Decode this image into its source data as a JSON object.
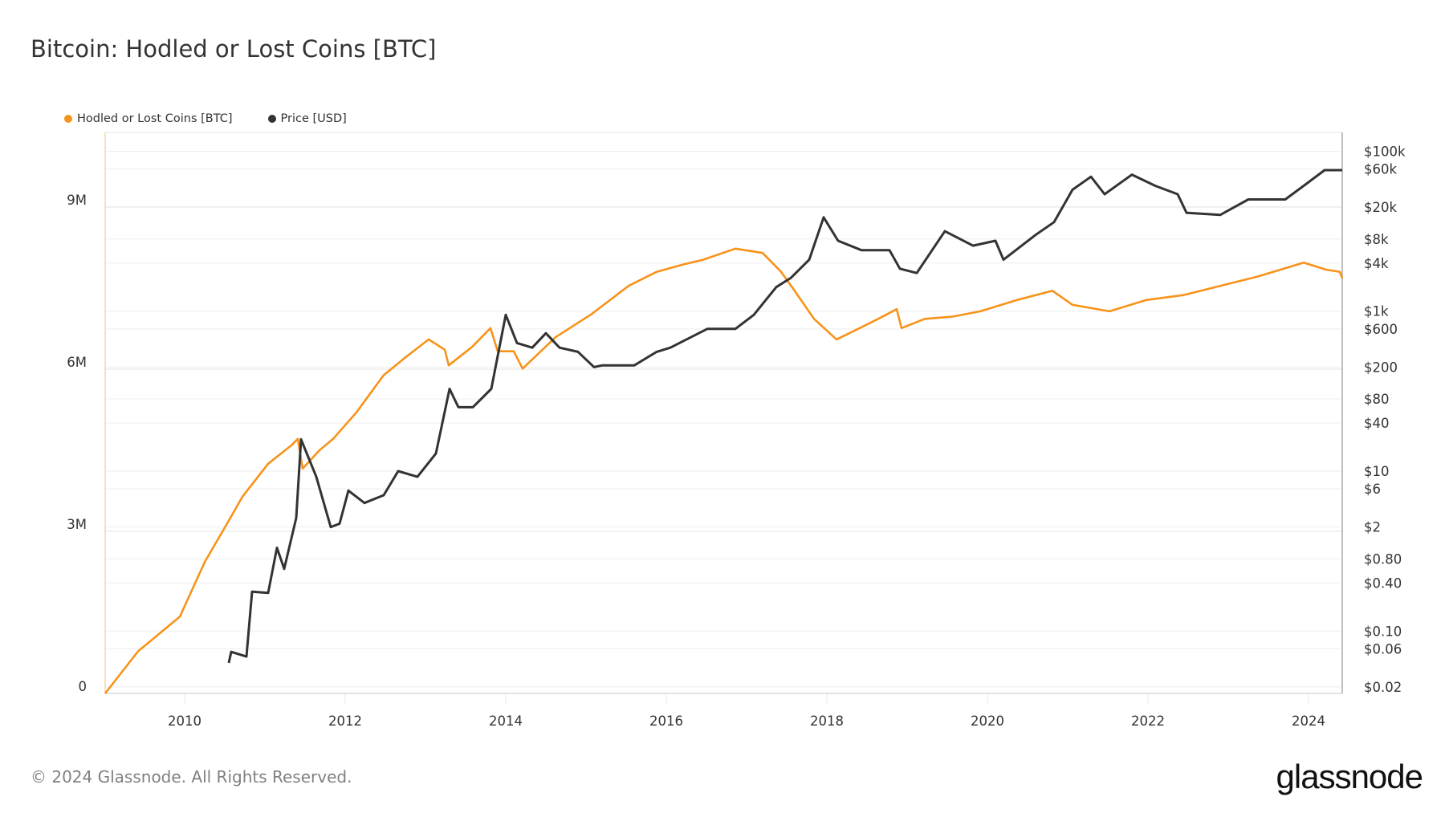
{
  "chart_data": {
    "type": "line",
    "title": "Bitcoin: Hodled or Lost Coins [BTC]",
    "xlim": [
      2009.01,
      2024.42
    ],
    "x_ticks": [
      "2010",
      "2012",
      "2014",
      "2016",
      "2018",
      "2020",
      "2022",
      "2024"
    ],
    "y_left": {
      "range": [
        0,
        10380000
      ],
      "ticks": [
        {
          "value": 0,
          "label": "0"
        },
        {
          "value": 3000000,
          "label": "3M"
        },
        {
          "value": 6000000,
          "label": "6M"
        },
        {
          "value": 9000000,
          "label": "9M"
        }
      ]
    },
    "y_right": {
      "scale": "log",
      "range": [
        0.0166,
        172000
      ],
      "ticks": [
        {
          "value": 100000,
          "label": "$100k"
        },
        {
          "value": 60000,
          "label": "$60k"
        },
        {
          "value": 20000,
          "label": "$20k"
        },
        {
          "value": 8000,
          "label": "$8k"
        },
        {
          "value": 4000,
          "label": "$4k"
        },
        {
          "value": 1000,
          "label": "$1k"
        },
        {
          "value": 600,
          "label": "$600"
        },
        {
          "value": 200,
          "label": "$200"
        },
        {
          "value": 80,
          "label": "$80"
        },
        {
          "value": 40,
          "label": "$40"
        },
        {
          "value": 10,
          "label": "$10"
        },
        {
          "value": 6,
          "label": "$6"
        },
        {
          "value": 2,
          "label": "$2"
        },
        {
          "value": 0.8,
          "label": "$0.80"
        },
        {
          "value": 0.4,
          "label": "$0.40"
        },
        {
          "value": 0.1,
          "label": "$0.10"
        },
        {
          "value": 0.06,
          "label": "$0.06"
        },
        {
          "value": 0.02,
          "label": "$0.02"
        }
      ]
    },
    "grid": true,
    "legend_position": "top-left",
    "series": [
      {
        "name": "Hodled or Lost Coins [BTC]",
        "axis": "left",
        "color": "#f7931a",
        "x": [
          2009.01,
          2009.42,
          2009.94,
          2010.25,
          2010.52,
          2010.72,
          2011.04,
          2011.33,
          2011.41,
          2011.47,
          2011.68,
          2011.85,
          2012.14,
          2012.48,
          2012.77,
          2013.04,
          2013.24,
          2013.29,
          2013.58,
          2013.81,
          2013.9,
          2014.1,
          2014.21,
          2014.62,
          2015.07,
          2015.53,
          2015.88,
          2016.22,
          2016.45,
          2016.86,
          2017.2,
          2017.43,
          2017.58,
          2017.84,
          2018.12,
          2018.41,
          2018.64,
          2018.87,
          2018.93,
          2019.22,
          2019.56,
          2019.91,
          2020.37,
          2020.81,
          2021.06,
          2021.52,
          2021.98,
          2022.44,
          2022.9,
          2023.36,
          2023.94,
          2024.22,
          2024.39,
          2024.42
        ],
        "y": [
          0,
          780000,
          1420000,
          2430000,
          3120000,
          3640000,
          4250000,
          4590000,
          4710000,
          4160000,
          4500000,
          4710000,
          5200000,
          5890000,
          6240000,
          6550000,
          6360000,
          6070000,
          6410000,
          6760000,
          6330000,
          6330000,
          6010000,
          6590000,
          7020000,
          7540000,
          7800000,
          7940000,
          8020000,
          8230000,
          8150000,
          7800000,
          7490000,
          6930000,
          6550000,
          6760000,
          6930000,
          7110000,
          6760000,
          6930000,
          6970000,
          7070000,
          7280000,
          7450000,
          7190000,
          7070000,
          7280000,
          7370000,
          7540000,
          7710000,
          7970000,
          7840000,
          7800000,
          7680000
        ]
      },
      {
        "name": "Price [USD]",
        "axis": "right",
        "color": "#333333",
        "x": [
          2010.55,
          2010.58,
          2010.77,
          2010.84,
          2011.04,
          2011.15,
          2011.24,
          2011.39,
          2011.45,
          2011.64,
          2011.82,
          2011.93,
          2012.04,
          2012.24,
          2012.48,
          2012.66,
          2012.9,
          2013.13,
          2013.3,
          2013.41,
          2013.59,
          2013.82,
          2014.0,
          2014.14,
          2014.33,
          2014.5,
          2014.67,
          2014.9,
          2015.1,
          2015.2,
          2015.6,
          2015.88,
          2016.05,
          2016.51,
          2016.86,
          2017.09,
          2017.37,
          2017.55,
          2017.78,
          2017.96,
          2018.14,
          2018.43,
          2018.78,
          2018.91,
          2019.12,
          2019.47,
          2019.82,
          2020.1,
          2020.2,
          2020.6,
          2020.83,
          2021.06,
          2021.29,
          2021.46,
          2021.8,
          2022.09,
          2022.37,
          2022.48,
          2022.9,
          2023.25,
          2023.71,
          2023.94,
          2024.2,
          2024.42
        ],
        "y": [
          0.04,
          0.055,
          0.048,
          0.31,
          0.3,
          1.1,
          0.6,
          2.6,
          25,
          8.5,
          2,
          2.2,
          5.7,
          4,
          5,
          10,
          8.5,
          16.6,
          107,
          63,
          63,
          107,
          900,
          400,
          350,
          530,
          350,
          310,
          200,
          210,
          210,
          310,
          350,
          600,
          600,
          900,
          2000,
          2600,
          4400,
          14900,
          7600,
          5800,
          5800,
          3400,
          3000,
          10000,
          6600,
          7600,
          4400,
          9000,
          13000,
          33000,
          48000,
          29000,
          51000,
          37000,
          29000,
          17000,
          16000,
          25000,
          25000,
          37000,
          58000,
          58000
        ]
      }
    ]
  },
  "footer": {
    "copyright": "© 2024 Glassnode. All Rights Reserved.",
    "logo": "glassnode"
  }
}
